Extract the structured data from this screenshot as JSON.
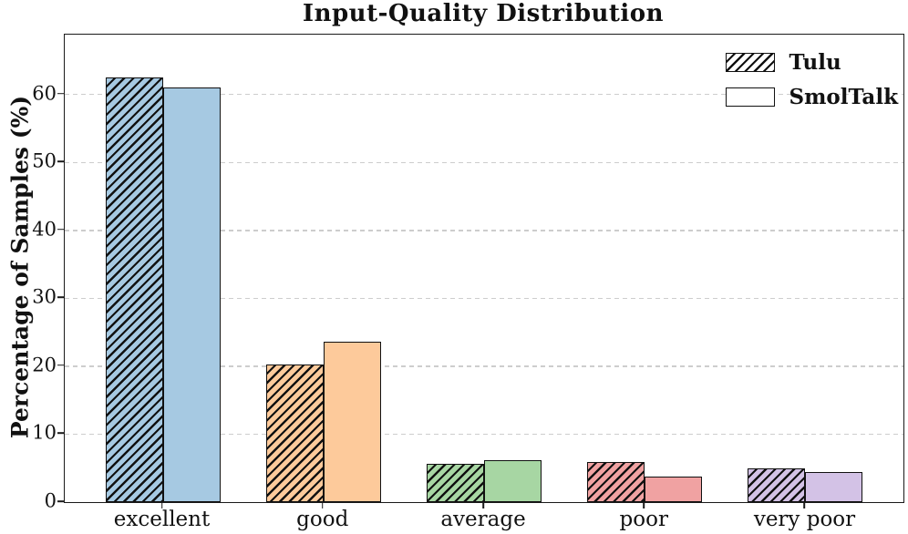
{
  "chart_data": {
    "type": "bar",
    "title": "Input-Quality Distribution",
    "ylabel": "Percentage of Samples (%)",
    "xlabel": "",
    "categories": [
      "excellent",
      "good",
      "average",
      "poor",
      "very poor"
    ],
    "series": [
      {
        "name": "Tulu",
        "hatch": "///",
        "values": [
          62.5,
          20.3,
          5.7,
          5.9,
          4.9
        ]
      },
      {
        "name": "SmolTalk",
        "hatch": null,
        "values": [
          61.0,
          23.6,
          6.2,
          3.8,
          4.4
        ]
      }
    ],
    "category_colors": [
      "#a6c9e2",
      "#fdca9b",
      "#a7d6a3",
      "#f0a2a2",
      "#d3c2e6"
    ],
    "edge_color": "#111111",
    "grid_color": "#cdcdcd",
    "ylim": [
      0,
      68.8
    ],
    "yticks": [
      0,
      10,
      20,
      30,
      40,
      50,
      60
    ],
    "grid": "horizontal-dashed",
    "legend_position": "upper-right",
    "legend_frame": false
  }
}
